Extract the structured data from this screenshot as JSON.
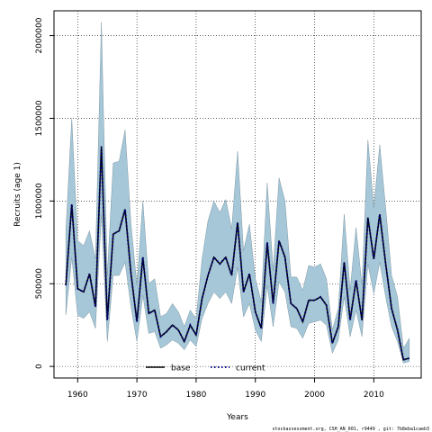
{
  "chart_data": {
    "type": "line",
    "xlabel": "Years",
    "ylabel": "Recruits (age 1)",
    "xlim": [
      1956,
      2018
    ],
    "ylim": [
      -70000,
      2150000
    ],
    "xticks": [
      1960,
      1970,
      1980,
      1990,
      2000,
      2010
    ],
    "yticks": [
      0,
      500000,
      1000000,
      1500000,
      2000000
    ],
    "grid": true,
    "legend_position": "bottom-center",
    "band_color": "#a5c7d7",
    "x": [
      1958,
      1959,
      1960,
      1961,
      1962,
      1963,
      1964,
      1965,
      1966,
      1967,
      1968,
      1969,
      1970,
      1971,
      1972,
      1973,
      1974,
      1975,
      1976,
      1977,
      1978,
      1979,
      1980,
      1981,
      1982,
      1983,
      1984,
      1985,
      1986,
      1987,
      1988,
      1989,
      1990,
      1991,
      1992,
      1993,
      1994,
      1995,
      1996,
      1997,
      1998,
      1999,
      2000,
      2001,
      2002,
      2003,
      2004,
      2005,
      2006,
      2007,
      2008,
      2009,
      2010,
      2011,
      2012,
      2013,
      2014,
      2015,
      2016
    ],
    "series": [
      {
        "name": "base",
        "style": "solid",
        "color": "#000000",
        "values": [
          490000,
          980000,
          470000,
          450000,
          560000,
          360000,
          1330000,
          280000,
          800000,
          820000,
          950000,
          560000,
          270000,
          660000,
          320000,
          340000,
          180000,
          210000,
          250000,
          220000,
          150000,
          250000,
          190000,
          410000,
          550000,
          660000,
          620000,
          660000,
          550000,
          870000,
          450000,
          560000,
          330000,
          230000,
          750000,
          380000,
          760000,
          660000,
          380000,
          350000,
          270000,
          400000,
          400000,
          420000,
          370000,
          140000,
          240000,
          630000,
          280000,
          520000,
          280000,
          900000,
          650000,
          920000,
          620000,
          350000,
          220000,
          40000,
          50000
        ]
      },
      {
        "name": "current",
        "style": "dotted",
        "color": "#000080",
        "values": [
          490000,
          980000,
          470000,
          450000,
          560000,
          360000,
          1330000,
          280000,
          800000,
          820000,
          950000,
          560000,
          270000,
          660000,
          320000,
          340000,
          180000,
          210000,
          250000,
          220000,
          150000,
          250000,
          190000,
          410000,
          550000,
          660000,
          620000,
          660000,
          550000,
          870000,
          450000,
          560000,
          330000,
          230000,
          750000,
          380000,
          760000,
          660000,
          380000,
          350000,
          270000,
          400000,
          400000,
          420000,
          370000,
          140000,
          240000,
          630000,
          280000,
          520000,
          280000,
          900000,
          650000,
          920000,
          620000,
          350000,
          220000,
          40000,
          50000
        ]
      }
    ],
    "band_upper": [
      820000,
      1500000,
      760000,
      730000,
      820000,
      650000,
      2080000,
      550000,
      1230000,
      1240000,
      1430000,
      860000,
      490000,
      1000000,
      500000,
      530000,
      300000,
      320000,
      380000,
      330000,
      240000,
      340000,
      290000,
      650000,
      880000,
      1000000,
      930000,
      1010000,
      830000,
      1300000,
      700000,
      860000,
      530000,
      390000,
      1110000,
      580000,
      1140000,
      1000000,
      540000,
      540000,
      460000,
      610000,
      600000,
      620000,
      530000,
      220000,
      350000,
      920000,
      460000,
      840000,
      490000,
      1370000,
      960000,
      1340000,
      960000,
      550000,
      420000,
      110000,
      170000
    ],
    "band_lower": [
      310000,
      660000,
      310000,
      290000,
      330000,
      230000,
      920000,
      150000,
      550000,
      550000,
      630000,
      360000,
      150000,
      430000,
      200000,
      210000,
      110000,
      130000,
      160000,
      140000,
      100000,
      160000,
      120000,
      290000,
      380000,
      450000,
      410000,
      450000,
      380000,
      600000,
      300000,
      380000,
      220000,
      150000,
      490000,
      240000,
      510000,
      450000,
      240000,
      230000,
      170000,
      260000,
      270000,
      280000,
      250000,
      80000,
      160000,
      420000,
      180000,
      340000,
      180000,
      620000,
      440000,
      630000,
      420000,
      240000,
      150000,
      20000,
      30000
    ]
  },
  "footnote": "stockassessment.org, CSH_AN_001, r9449 , git: 7b8eba1caeb3"
}
